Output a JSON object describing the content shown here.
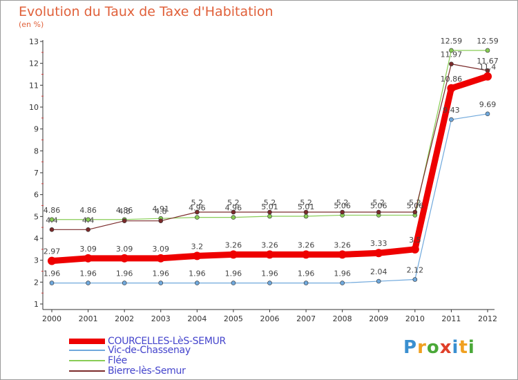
{
  "header": {
    "title": "Evolution du Taux de Taxe d'Habitation",
    "subtitle": "(en %)"
  },
  "logo": {
    "letters": [
      "P",
      "r",
      "o",
      "x",
      "i",
      "t",
      "i"
    ],
    "colors": [
      "#3a8fd0",
      "#f0a020",
      "#4aa838",
      "#e0402a",
      "#3a8fd0",
      "#f0a020",
      "#4aa838"
    ]
  },
  "chart_data": {
    "type": "line",
    "title": "Evolution du Taux de Taxe d'Habitation",
    "ylabel": "(en %)",
    "xlabel": "",
    "x": [
      "2000",
      "2001",
      "2002",
      "2003",
      "2004",
      "2005",
      "2006",
      "2007",
      "2008",
      "2009",
      "2010",
      "2011",
      "2012"
    ],
    "ylim": [
      1,
      13
    ],
    "yticks": [
      1,
      2,
      3,
      4,
      5,
      6,
      7,
      8,
      9,
      10,
      11,
      12,
      13
    ],
    "grid": false,
    "legend_position": "bottom-left",
    "series": [
      {
        "name": "COURCELLES-LèS-SEMUR",
        "color": "#ee0000",
        "values": [
          2.97,
          3.09,
          3.09,
          3.09,
          3.2,
          3.26,
          3.26,
          3.26,
          3.26,
          3.33,
          3.5,
          10.86,
          11.4
        ],
        "labels": [
          "2.97",
          "3.09",
          "3.09",
          "3.09",
          "3.2",
          "3.26",
          "3.26",
          "3.26",
          "3.26",
          "3.33",
          "3.5",
          "10.86",
          "11.4"
        ]
      },
      {
        "name": "Vic-de-Chassenay",
        "color": "#6fa8dc",
        "values": [
          1.96,
          1.96,
          1.96,
          1.96,
          1.96,
          1.96,
          1.96,
          1.96,
          1.96,
          2.04,
          2.12,
          9.43,
          9.69
        ],
        "labels": [
          "1.96",
          "1.96",
          "1.96",
          "1.96",
          "1.96",
          "1.96",
          "1.96",
          "1.96",
          "1.96",
          "2.04",
          "2.12",
          "9.43",
          "9.69"
        ]
      },
      {
        "name": "Flée",
        "color": "#88cc55",
        "values": [
          4.86,
          4.86,
          4.86,
          4.91,
          4.96,
          4.96,
          5.01,
          5.01,
          5.06,
          5.06,
          5.06,
          12.59,
          12.59
        ],
        "labels": [
          "4.86",
          "4.86",
          "4.86",
          "4.91",
          "4.96",
          "4.96",
          "5.01",
          "5.01",
          "5.06",
          "5.06",
          "5.06",
          "12.59",
          "12.59"
        ]
      },
      {
        "name": "Bierre-lès-Semur",
        "color": "#7a2a2a",
        "values": [
          4.4,
          4.4,
          4.8,
          4.8,
          5.2,
          5.2,
          5.2,
          5.2,
          5.2,
          5.2,
          5.2,
          11.97,
          11.67
        ],
        "labels": [
          "4.4",
          "4.4",
          "4.8",
          "4.8",
          "5.2",
          "5.2",
          "5.2",
          "5.2",
          "5.2",
          "5.2",
          "5.2",
          "11.97",
          "11.67"
        ]
      }
    ]
  }
}
